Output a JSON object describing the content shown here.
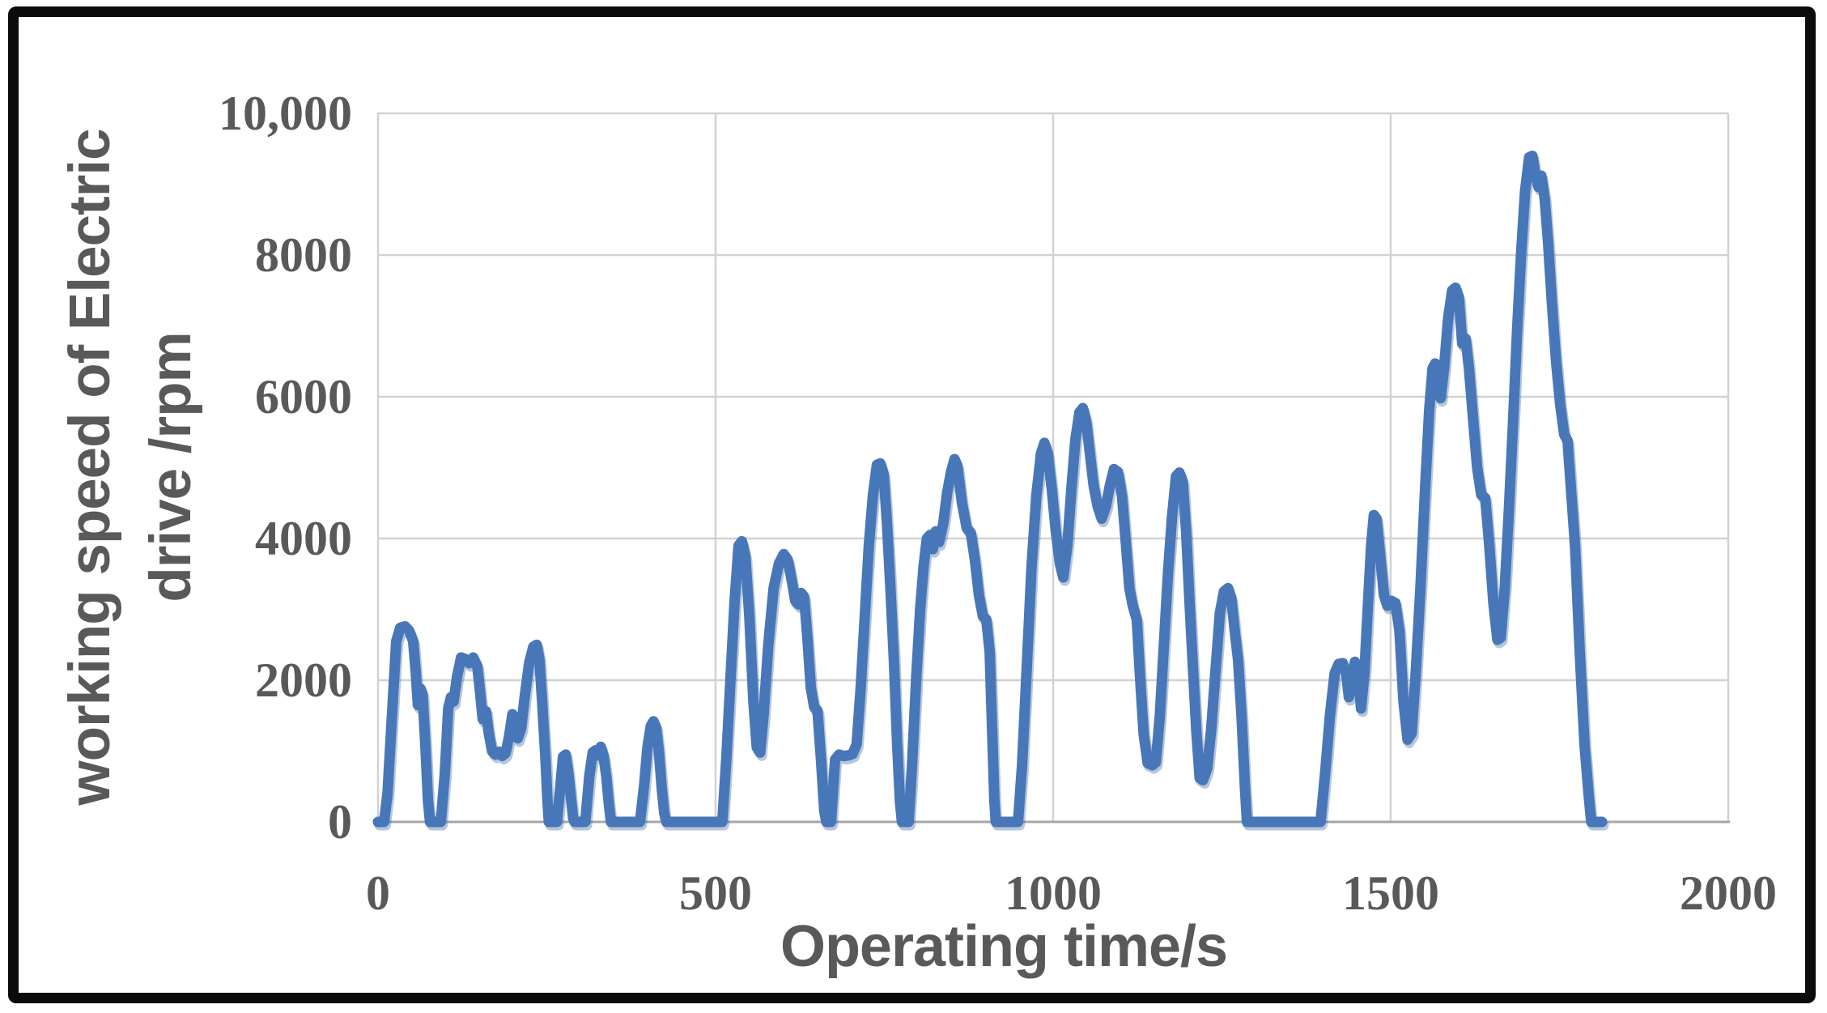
{
  "frame": {
    "border_color": "#0b0b0b",
    "background": "#ffffff"
  },
  "chart_data": {
    "type": "line",
    "title": "",
    "xlabel": "Operating time/s",
    "ylabel": "working speed of Electric drive /rpm",
    "ylabel_lines": [
      "working speed of Electric",
      "drive /rpm"
    ],
    "xlim": [
      0,
      2000
    ],
    "ylim": [
      0,
      10000
    ],
    "x_ticks": [
      {
        "value": 0,
        "label": "0"
      },
      {
        "value": 500,
        "label": "500"
      },
      {
        "value": 1000,
        "label": "1000"
      },
      {
        "value": 1500,
        "label": "1500"
      },
      {
        "value": 2000,
        "label": "2000"
      }
    ],
    "y_ticks": [
      {
        "value": 0,
        "label": "0"
      },
      {
        "value": 2000,
        "label": "2000"
      },
      {
        "value": 4000,
        "label": "4000"
      },
      {
        "value": 6000,
        "label": "6000"
      },
      {
        "value": 8000,
        "label": "8000"
      },
      {
        "value": 10000,
        "label": "10,000"
      }
    ],
    "grid": true,
    "legend": false,
    "styles": {
      "line_color": "#4777b8",
      "line_shadow": "#2f5d9d",
      "grid_color": "#d2d2d2",
      "axis_color": "#a6a6a6",
      "text_color": "#595959"
    },
    "series": [
      {
        "name": "working speed of Electric drive",
        "points": [
          [
            0,
            0
          ],
          [
            9,
            0
          ],
          [
            14,
            400
          ],
          [
            20,
            1400
          ],
          [
            27,
            2550
          ],
          [
            33,
            2740
          ],
          [
            40,
            2760
          ],
          [
            46,
            2700
          ],
          [
            52,
            2550
          ],
          [
            56,
            2100
          ],
          [
            59,
            1650
          ],
          [
            63,
            1880
          ],
          [
            66,
            1800
          ],
          [
            70,
            1100
          ],
          [
            74,
            300
          ],
          [
            77,
            0
          ],
          [
            93,
            0
          ],
          [
            99,
            700
          ],
          [
            104,
            1600
          ],
          [
            108,
            1760
          ],
          [
            112,
            1700
          ],
          [
            117,
            2050
          ],
          [
            123,
            2320
          ],
          [
            129,
            2300
          ],
          [
            135,
            2240
          ],
          [
            141,
            2320
          ],
          [
            147,
            2200
          ],
          [
            151,
            1850
          ],
          [
            155,
            1450
          ],
          [
            160,
            1560
          ],
          [
            164,
            1250
          ],
          [
            169,
            1000
          ],
          [
            174,
            950
          ],
          [
            179,
            990
          ],
          [
            184,
            930
          ],
          [
            189,
            970
          ],
          [
            194,
            1200
          ],
          [
            199,
            1520
          ],
          [
            203,
            1450
          ],
          [
            207,
            1180
          ],
          [
            212,
            1320
          ],
          [
            217,
            1750
          ],
          [
            224,
            2250
          ],
          [
            230,
            2470
          ],
          [
            235,
            2500
          ],
          [
            239,
            2300
          ],
          [
            243,
            1700
          ],
          [
            248,
            900
          ],
          [
            251,
            300
          ],
          [
            253,
            0
          ],
          [
            265,
            0
          ],
          [
            270,
            500
          ],
          [
            274,
            920
          ],
          [
            278,
            950
          ],
          [
            282,
            680
          ],
          [
            286,
            320
          ],
          [
            289,
            60
          ],
          [
            291,
            0
          ],
          [
            307,
            0
          ],
          [
            313,
            650
          ],
          [
            318,
            980
          ],
          [
            322,
            1010
          ],
          [
            326,
            940
          ],
          [
            330,
            1060
          ],
          [
            334,
            930
          ],
          [
            338,
            650
          ],
          [
            342,
            250
          ],
          [
            345,
            0
          ],
          [
            388,
            0
          ],
          [
            394,
            500
          ],
          [
            399,
            1050
          ],
          [
            404,
            1350
          ],
          [
            408,
            1420
          ],
          [
            412,
            1330
          ],
          [
            416,
            1000
          ],
          [
            420,
            500
          ],
          [
            424,
            120
          ],
          [
            427,
            0
          ],
          [
            510,
            0
          ],
          [
            516,
            900
          ],
          [
            522,
            2000
          ],
          [
            528,
            3100
          ],
          [
            534,
            3900
          ],
          [
            539,
            3960
          ],
          [
            544,
            3750
          ],
          [
            550,
            2900
          ],
          [
            556,
            1700
          ],
          [
            561,
            1050
          ],
          [
            566,
            980
          ],
          [
            571,
            1500
          ],
          [
            578,
            2500
          ],
          [
            586,
            3300
          ],
          [
            594,
            3650
          ],
          [
            601,
            3780
          ],
          [
            607,
            3700
          ],
          [
            613,
            3400
          ],
          [
            618,
            3120
          ],
          [
            623,
            3070
          ],
          [
            627,
            3230
          ],
          [
            631,
            3180
          ],
          [
            636,
            2600
          ],
          [
            641,
            1900
          ],
          [
            646,
            1620
          ],
          [
            651,
            1570
          ],
          [
            656,
            900
          ],
          [
            661,
            150
          ],
          [
            664,
            0
          ],
          [
            671,
            0
          ],
          [
            677,
            880
          ],
          [
            683,
            950
          ],
          [
            690,
            930
          ],
          [
            697,
            940
          ],
          [
            703,
            960
          ],
          [
            709,
            1100
          ],
          [
            715,
            1900
          ],
          [
            721,
            2900
          ],
          [
            727,
            3900
          ],
          [
            733,
            4600
          ],
          [
            739,
            5040
          ],
          [
            744,
            5060
          ],
          [
            749,
            4900
          ],
          [
            754,
            4200
          ],
          [
            759,
            3300
          ],
          [
            764,
            2300
          ],
          [
            769,
            1100
          ],
          [
            773,
            300
          ],
          [
            776,
            0
          ],
          [
            786,
            0
          ],
          [
            791,
            800
          ],
          [
            797,
            2000
          ],
          [
            803,
            3000
          ],
          [
            808,
            3600
          ],
          [
            813,
            4000
          ],
          [
            818,
            4050
          ],
          [
            822,
            3850
          ],
          [
            826,
            4100
          ],
          [
            831,
            3950
          ],
          [
            837,
            4200
          ],
          [
            843,
            4650
          ],
          [
            849,
            4950
          ],
          [
            854,
            5120
          ],
          [
            858,
            5030
          ],
          [
            865,
            4500
          ],
          [
            872,
            4150
          ],
          [
            878,
            4080
          ],
          [
            884,
            3700
          ],
          [
            890,
            3200
          ],
          [
            896,
            2900
          ],
          [
            901,
            2860
          ],
          [
            906,
            2400
          ],
          [
            910,
            1200
          ],
          [
            913,
            300
          ],
          [
            915,
            0
          ],
          [
            948,
            0
          ],
          [
            954,
            800
          ],
          [
            961,
            2200
          ],
          [
            968,
            3600
          ],
          [
            975,
            4600
          ],
          [
            982,
            5200
          ],
          [
            987,
            5350
          ],
          [
            992,
            5200
          ],
          [
            998,
            4700
          ],
          [
            1004,
            4100
          ],
          [
            1010,
            3650
          ],
          [
            1015,
            3450
          ],
          [
            1021,
            3900
          ],
          [
            1027,
            4700
          ],
          [
            1033,
            5400
          ],
          [
            1039,
            5780
          ],
          [
            1044,
            5840
          ],
          [
            1049,
            5650
          ],
          [
            1055,
            5150
          ],
          [
            1060,
            4750
          ],
          [
            1066,
            4450
          ],
          [
            1072,
            4280
          ],
          [
            1078,
            4450
          ],
          [
            1084,
            4750
          ],
          [
            1090,
            4980
          ],
          [
            1096,
            4940
          ],
          [
            1102,
            4600
          ],
          [
            1108,
            3900
          ],
          [
            1113,
            3300
          ],
          [
            1118,
            3050
          ],
          [
            1124,
            2850
          ],
          [
            1129,
            2000
          ],
          [
            1134,
            1240
          ],
          [
            1140,
            830
          ],
          [
            1147,
            800
          ],
          [
            1152,
            840
          ],
          [
            1158,
            1500
          ],
          [
            1164,
            2500
          ],
          [
            1170,
            3500
          ],
          [
            1176,
            4300
          ],
          [
            1182,
            4880
          ],
          [
            1187,
            4930
          ],
          [
            1192,
            4800
          ],
          [
            1197,
            4100
          ],
          [
            1202,
            3100
          ],
          [
            1207,
            2200
          ],
          [
            1212,
            1300
          ],
          [
            1217,
            620
          ],
          [
            1222,
            590
          ],
          [
            1228,
            750
          ],
          [
            1234,
            1300
          ],
          [
            1241,
            2200
          ],
          [
            1247,
            2950
          ],
          [
            1253,
            3250
          ],
          [
            1259,
            3300
          ],
          [
            1264,
            3150
          ],
          [
            1269,
            2700
          ],
          [
            1274,
            2280
          ],
          [
            1279,
            1500
          ],
          [
            1284,
            500
          ],
          [
            1287,
            0
          ],
          [
            1396,
            0
          ],
          [
            1403,
            700
          ],
          [
            1410,
            1500
          ],
          [
            1417,
            2100
          ],
          [
            1423,
            2230
          ],
          [
            1429,
            2240
          ],
          [
            1434,
            2100
          ],
          [
            1438,
            1760
          ],
          [
            1443,
            2000
          ],
          [
            1447,
            2260
          ],
          [
            1452,
            2100
          ],
          [
            1456,
            1600
          ],
          [
            1461,
            2100
          ],
          [
            1466,
            3000
          ],
          [
            1471,
            3900
          ],
          [
            1475,
            4330
          ],
          [
            1479,
            4280
          ],
          [
            1484,
            3800
          ],
          [
            1490,
            3200
          ],
          [
            1495,
            3050
          ],
          [
            1501,
            3120
          ],
          [
            1507,
            3090
          ],
          [
            1513,
            2700
          ],
          [
            1519,
            1700
          ],
          [
            1525,
            1160
          ],
          [
            1531,
            1250
          ],
          [
            1537,
            2100
          ],
          [
            1544,
            3300
          ],
          [
            1551,
            4700
          ],
          [
            1557,
            5800
          ],
          [
            1562,
            6400
          ],
          [
            1566,
            6470
          ],
          [
            1570,
            6300
          ],
          [
            1574,
            5980
          ],
          [
            1579,
            6400
          ],
          [
            1585,
            7100
          ],
          [
            1591,
            7500
          ],
          [
            1596,
            7540
          ],
          [
            1601,
            7400
          ],
          [
            1606,
            6750
          ],
          [
            1611,
            6820
          ],
          [
            1616,
            6400
          ],
          [
            1622,
            5700
          ],
          [
            1628,
            5000
          ],
          [
            1634,
            4620
          ],
          [
            1640,
            4570
          ],
          [
            1646,
            3900
          ],
          [
            1652,
            3100
          ],
          [
            1658,
            2570
          ],
          [
            1663,
            2600
          ],
          [
            1669,
            3300
          ],
          [
            1675,
            4400
          ],
          [
            1681,
            5600
          ],
          [
            1687,
            6900
          ],
          [
            1693,
            8000
          ],
          [
            1699,
            8900
          ],
          [
            1705,
            9380
          ],
          [
            1710,
            9400
          ],
          [
            1715,
            9100
          ],
          [
            1719,
            8960
          ],
          [
            1723,
            9120
          ],
          [
            1728,
            8800
          ],
          [
            1733,
            8200
          ],
          [
            1739,
            7300
          ],
          [
            1745,
            6500
          ],
          [
            1751,
            5900
          ],
          [
            1757,
            5470
          ],
          [
            1762,
            5380
          ],
          [
            1767,
            4700
          ],
          [
            1773,
            3900
          ],
          [
            1780,
            2400
          ],
          [
            1787,
            1100
          ],
          [
            1793,
            400
          ],
          [
            1797,
            0
          ],
          [
            1813,
            0
          ]
        ]
      }
    ]
  }
}
